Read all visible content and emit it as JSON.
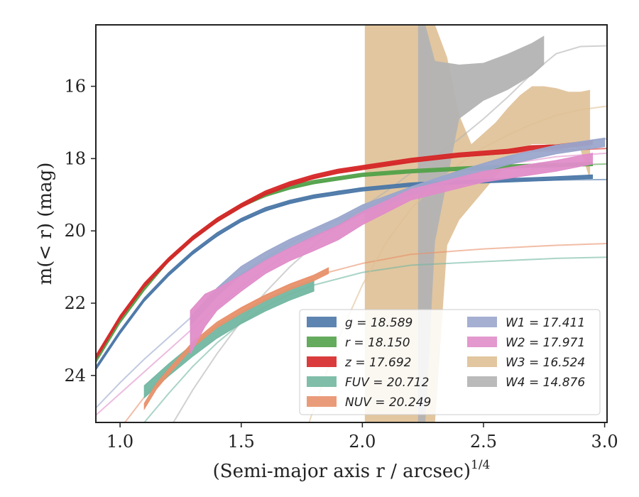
{
  "chart_data": {
    "type": "line",
    "xlabel": "(Semi-major axis r / arcsec)",
    "xlabel_sup": "1/4",
    "ylabel": "m(< r) (mag)",
    "xlim": [
      0.9,
      3.01
    ],
    "ylim": [
      25.3,
      14.3
    ],
    "x_ticks": [
      1.0,
      1.5,
      2.0,
      2.5,
      3.0
    ],
    "x_tick_labels": [
      "1.0",
      "1.5",
      "2.0",
      "2.5",
      "3.0"
    ],
    "y_ticks": [
      16,
      18,
      20,
      22,
      24
    ],
    "y_tick_labels": [
      "16",
      "18",
      "20",
      "22",
      "24"
    ],
    "legend_position": "lower-right",
    "series": [
      {
        "name": "g",
        "legend": "g = 18.589",
        "color": "#4c78a8",
        "hw": 0.05,
        "x": [
          0.9,
          1.0,
          1.1,
          1.2,
          1.3,
          1.4,
          1.5,
          1.6,
          1.7,
          1.8,
          1.9,
          2.0,
          2.2,
          2.4,
          2.6,
          2.8,
          2.95
        ],
        "y": [
          23.8,
          22.8,
          21.9,
          21.2,
          20.6,
          20.1,
          19.7,
          19.4,
          19.2,
          19.05,
          18.95,
          18.85,
          18.72,
          18.65,
          18.6,
          18.55,
          18.5
        ],
        "model_x": [
          0.9,
          1.0,
          1.1,
          1.2,
          1.3,
          1.5,
          1.7,
          1.9,
          2.1,
          2.4,
          2.7,
          3.01
        ],
        "model_y": [
          23.8,
          22.8,
          21.9,
          21.2,
          20.6,
          19.7,
          19.2,
          18.9,
          18.75,
          18.65,
          18.6,
          18.58
        ]
      },
      {
        "name": "r",
        "legend": "r = 18.150",
        "color": "#54a24b",
        "hw": 0.05,
        "x": [
          0.9,
          1.0,
          1.1,
          1.2,
          1.3,
          1.4,
          1.5,
          1.6,
          1.7,
          1.8,
          1.9,
          2.0,
          2.2,
          2.4,
          2.6,
          2.8,
          2.95
        ],
        "y": [
          23.6,
          22.5,
          21.6,
          20.8,
          20.2,
          19.7,
          19.3,
          19.0,
          18.8,
          18.65,
          18.55,
          18.45,
          18.35,
          18.28,
          18.22,
          18.18,
          18.15
        ],
        "model_x": [
          0.9,
          1.0,
          1.1,
          1.2,
          1.3,
          1.5,
          1.7,
          1.9,
          2.1,
          2.4,
          2.7,
          3.01
        ],
        "model_y": [
          23.6,
          22.5,
          21.6,
          20.8,
          20.2,
          19.3,
          18.8,
          18.55,
          18.4,
          18.28,
          18.2,
          18.15
        ]
      },
      {
        "name": "z",
        "legend": "z = 17.692",
        "color": "#d62728",
        "hw": 0.06,
        "x": [
          0.9,
          1.0,
          1.1,
          1.2,
          1.3,
          1.4,
          1.5,
          1.6,
          1.7,
          1.8,
          1.9,
          2.0,
          2.2,
          2.4,
          2.6,
          2.7,
          2.8,
          2.95
        ],
        "y": [
          23.5,
          22.4,
          21.5,
          20.8,
          20.2,
          19.7,
          19.3,
          18.95,
          18.7,
          18.5,
          18.35,
          18.25,
          18.05,
          17.9,
          17.8,
          17.7,
          17.68,
          17.55
        ],
        "model_x": [
          0.9,
          1.0,
          1.1,
          1.2,
          1.3,
          1.5,
          1.7,
          1.9,
          2.1,
          2.4,
          2.7,
          3.01
        ],
        "model_y": [
          23.5,
          22.4,
          21.5,
          20.8,
          20.2,
          19.3,
          18.7,
          18.35,
          18.15,
          17.95,
          17.8,
          17.72
        ]
      },
      {
        "name": "FUV",
        "legend": "FUV = 20.712",
        "color": "#72b7a1",
        "hw": 0.17,
        "x": [
          1.1,
          1.2,
          1.3,
          1.4,
          1.5,
          1.6,
          1.7,
          1.8
        ],
        "y": [
          24.45,
          23.85,
          23.3,
          22.8,
          22.4,
          22.05,
          21.75,
          21.5
        ],
        "model_x": [
          1.1,
          1.2,
          1.3,
          1.4,
          1.5,
          1.6,
          1.7,
          1.8,
          2.0,
          2.2,
          2.5,
          2.8,
          3.01
        ],
        "model_y": [
          25.3,
          24.5,
          23.75,
          23.1,
          22.55,
          22.1,
          21.75,
          21.5,
          21.15,
          20.95,
          20.85,
          20.76,
          20.73
        ]
      },
      {
        "name": "NUV",
        "legend": "NUV = 20.249",
        "color": "#e8916b",
        "hw": 0.08,
        "x": [
          1.1,
          1.15,
          1.2,
          1.3,
          1.4,
          1.5,
          1.6,
          1.7,
          1.8,
          1.86
        ],
        "y": [
          24.85,
          24.3,
          23.9,
          23.15,
          22.6,
          22.2,
          21.85,
          21.55,
          21.3,
          21.1
        ],
        "model_x": [
          1.02,
          1.1,
          1.2,
          1.3,
          1.4,
          1.5,
          1.6,
          1.7,
          1.8,
          2.0,
          2.2,
          2.5,
          2.8,
          3.01
        ],
        "model_y": [
          25.3,
          24.6,
          23.8,
          23.15,
          22.6,
          22.15,
          21.8,
          21.5,
          21.25,
          20.9,
          20.65,
          20.5,
          20.4,
          20.35
        ]
      },
      {
        "name": "W1",
        "legend": "W1 = 17.411",
        "color": "#9aa6cc",
        "hw": 0.12,
        "x": [
          1.29,
          1.4,
          1.5,
          1.6,
          1.7,
          1.8,
          1.9,
          2.0,
          2.2,
          2.4,
          2.6,
          2.8,
          3.0
        ],
        "y": [
          22.5,
          21.7,
          21.1,
          20.7,
          20.35,
          20.05,
          19.75,
          19.4,
          18.9,
          18.45,
          18.05,
          17.75,
          17.55
        ],
        "model_x": [
          0.9,
          1.0,
          1.1,
          1.2,
          1.3,
          1.4,
          1.5,
          1.6,
          1.7,
          1.8,
          1.9,
          2.0,
          2.2,
          2.4,
          2.6,
          2.8,
          3.01
        ],
        "model_y": [
          24.9,
          24.2,
          23.55,
          22.95,
          22.35,
          21.75,
          21.2,
          20.75,
          20.35,
          20.0,
          19.7,
          19.4,
          18.85,
          18.35,
          17.95,
          17.65,
          17.45
        ]
      },
      {
        "name": "W2",
        "legend": "W2 = 17.971",
        "color": "#e08dc9",
        "hw": [
          0.6,
          0.45,
          0.3,
          0.22,
          0.18,
          0.18,
          0.2,
          0.2,
          0.18,
          0.15,
          0.15,
          0.15,
          0.15
        ],
        "x": [
          1.29,
          1.35,
          1.4,
          1.5,
          1.6,
          1.7,
          1.8,
          1.9,
          2.0,
          2.2,
          2.5,
          2.8,
          2.95
        ],
        "y": [
          22.8,
          22.2,
          21.9,
          21.45,
          21.0,
          20.65,
          20.35,
          20.05,
          19.65,
          19.0,
          18.5,
          18.2,
          18.0
        ],
        "model_x": [
          0.9,
          1.0,
          1.1,
          1.2,
          1.3,
          1.4,
          1.5,
          1.6,
          1.7,
          1.8,
          1.9,
          2.0,
          2.2,
          2.4,
          2.6,
          2.8,
          3.01
        ],
        "model_y": [
          25.1,
          24.5,
          23.9,
          23.3,
          22.7,
          22.1,
          21.55,
          21.05,
          20.6,
          20.2,
          19.85,
          19.5,
          18.9,
          18.45,
          18.15,
          17.95,
          17.85
        ]
      },
      {
        "name": "W3",
        "legend": "W3 = 16.524",
        "color": "#dfc095",
        "band_x": [
          2.01,
          2.23,
          2.23,
          2.3,
          2.35,
          2.4,
          2.45,
          2.5,
          2.55,
          2.6,
          2.65,
          2.7,
          2.75,
          2.8,
          2.85,
          2.9,
          2.94
        ],
        "band_top": [
          14.3,
          14.3,
          14.3,
          14.3,
          15.2,
          16.8,
          17.6,
          17.3,
          17.0,
          16.6,
          16.25,
          16.0,
          16.0,
          16.05,
          16.15,
          16.15,
          16.1
        ],
        "band_bottom": [
          25.3,
          25.3,
          25.3,
          25.3,
          20.4,
          19.7,
          19.3,
          18.9,
          18.5,
          18.15,
          17.8,
          17.6,
          17.6,
          17.65,
          17.65,
          17.75,
          18.6
        ],
        "model_x": [
          1.78,
          1.9,
          2.0,
          2.1,
          2.2,
          2.3,
          2.4,
          2.5,
          2.6,
          2.7,
          2.8,
          2.9,
          3.01
        ],
        "model_y": [
          25.3,
          23.0,
          21.5,
          20.3,
          19.4,
          18.7,
          18.15,
          17.7,
          17.35,
          17.05,
          16.8,
          16.65,
          16.55
        ]
      },
      {
        "name": "W4",
        "legend": "W4 = 14.876",
        "color": "#b3b3b3",
        "band_x": [
          2.23,
          2.26,
          2.3,
          2.35,
          2.4,
          2.5,
          2.6,
          2.7,
          2.75
        ],
        "band_top": [
          14.3,
          14.3,
          15.3,
          15.35,
          15.4,
          15.35,
          15.1,
          14.8,
          14.6
        ],
        "band_bottom": [
          25.3,
          25.3,
          20.3,
          18.6,
          16.9,
          16.4,
          16.1,
          15.7,
          15.4
        ],
        "model_x": [
          1.22,
          1.3,
          1.4,
          1.5,
          1.6,
          1.7,
          1.8,
          1.9,
          2.0,
          2.1,
          2.2,
          2.3,
          2.4,
          2.5,
          2.6,
          2.7,
          2.8,
          2.9,
          3.01
        ],
        "model_y": [
          25.3,
          24.4,
          23.4,
          22.5,
          21.7,
          21.0,
          20.4,
          19.85,
          19.35,
          18.9,
          18.4,
          17.95,
          17.45,
          16.9,
          16.3,
          15.65,
          15.1,
          14.9,
          14.88
        ]
      }
    ]
  }
}
